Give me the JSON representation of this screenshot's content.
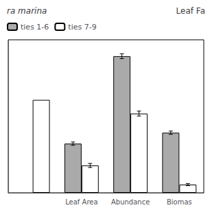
{
  "chart_data": {
    "type": "bar",
    "title": "ra marina",
    "annotations": [
      "Leaf Fa"
    ],
    "categories": [
      null,
      "Leaf Area",
      "Abundance",
      "Biomas"
    ],
    "series": [
      {
        "name": "ties 1-6",
        "color": "#aaaaaa",
        "values": [
          null,
          0.36,
          1.0,
          0.44
        ],
        "errors": [
          null,
          0.012,
          0.018,
          0.012
        ]
      },
      {
        "name": "ties 7-9",
        "color": "#ffffff",
        "values": [
          0.68,
          0.2,
          0.58,
          0.06
        ],
        "errors": [
          null,
          0.015,
          0.018,
          0.008
        ]
      }
    ],
    "ylim": [
      0,
      1.12
    ],
    "yticks": [],
    "grid": false,
    "legend": "upper left",
    "tick_labels": "x"
  }
}
